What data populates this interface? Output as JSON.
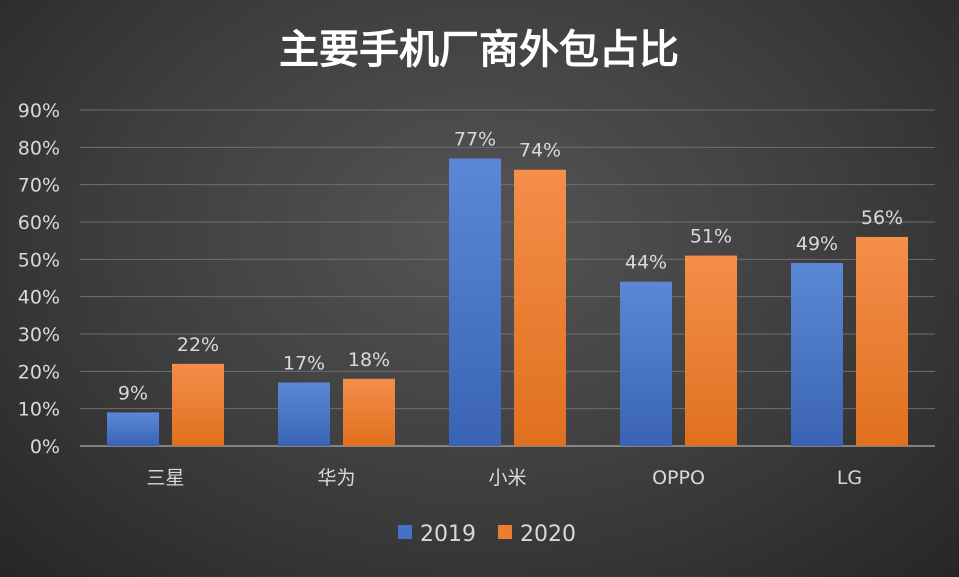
{
  "chart_data": {
    "type": "bar",
    "title": "主要手机厂商外包占比",
    "categories": [
      "三星",
      "华为",
      "小米",
      "OPPO",
      "LG"
    ],
    "series": [
      {
        "name": "2019",
        "values": [
          9,
          17,
          77,
          44,
          49
        ],
        "labels": [
          "9%",
          "17%",
          "77%",
          "44%",
          "49%"
        ],
        "color": "#4472c4"
      },
      {
        "name": "2020",
        "values": [
          22,
          18,
          74,
          51,
          56
        ],
        "labels": [
          "22%",
          "18%",
          "74%",
          "51%",
          "56%"
        ],
        "color": "#ed7d31"
      }
    ],
    "yticks": [
      "0%",
      "10%",
      "20%",
      "30%",
      "40%",
      "50%",
      "60%",
      "70%",
      "80%",
      "90%"
    ],
    "ylim": [
      0,
      90
    ],
    "grid": true,
    "legend_position": "bottom",
    "xlabel": "",
    "ylabel": ""
  }
}
